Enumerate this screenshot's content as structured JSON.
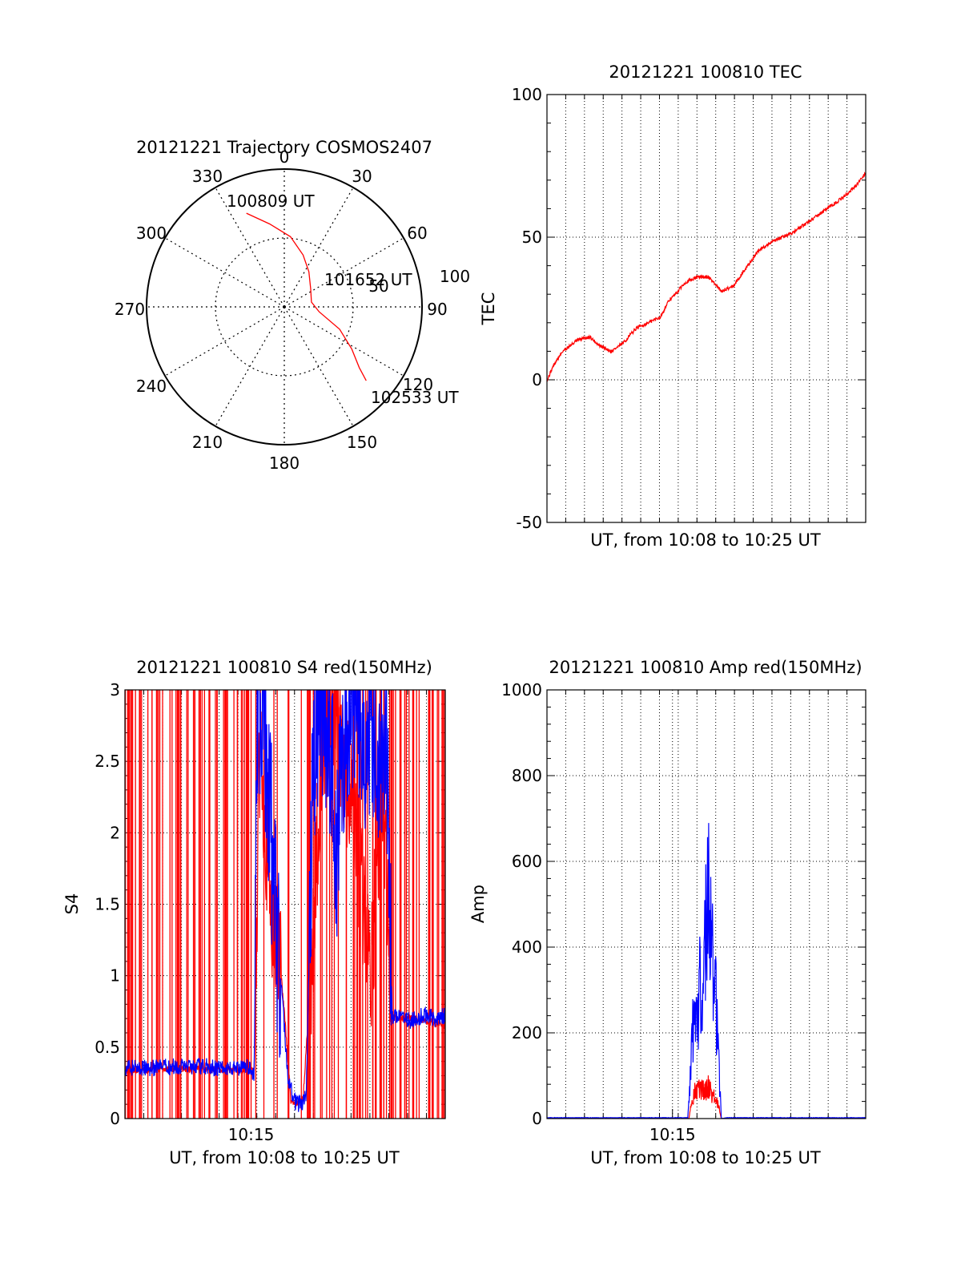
{
  "colors": {
    "red": "#ff0000",
    "blue": "#0000ff",
    "grid": "#000000"
  },
  "chart_data": [
    {
      "id": "trajectory",
      "type": "scatter",
      "subtype": "polar",
      "title": "20121221 Trajectory COSMOS2407",
      "azimuth_labels": [
        "0",
        "30",
        "60",
        "90",
        "120",
        "150",
        "180",
        "210",
        "240",
        "270",
        "300",
        "330"
      ],
      "radius_labels": [
        "50",
        "100"
      ],
      "annotations": [
        "100809 UT",
        "101652 UT",
        "102533 UT"
      ],
      "series": [
        {
          "color": "#ff0000",
          "points_az_el": [
            [
              338,
              24
            ],
            [
              350,
              35
            ],
            [
              5,
              44
            ],
            [
              20,
              54
            ],
            [
              35,
              62
            ],
            [
              55,
              69
            ],
            [
              80,
              72
            ],
            [
              98,
              67
            ],
            [
              112,
              51
            ],
            [
              122,
              38
            ],
            [
              129,
              27
            ],
            [
              132,
              18
            ]
          ]
        }
      ]
    },
    {
      "id": "tec",
      "type": "line",
      "title": "20121221 100810 TEC",
      "xlabel": "UT, from 10:08 to 10:25 UT",
      "ylabel": "TEC",
      "xlim": [
        10.1358,
        10.4258
      ],
      "ylim": [
        -50,
        100
      ],
      "yticks": [
        "-50",
        "0",
        "50",
        "100"
      ],
      "grid": true,
      "series": [
        {
          "color": "#ff0000",
          "x": [
            10.1361,
            10.1417,
            10.15,
            10.1639,
            10.175,
            10.1833,
            10.1944,
            10.2056,
            10.2167,
            10.2278,
            10.2389,
            10.2444,
            10.2472,
            10.2528,
            10.2611,
            10.2722,
            10.2833,
            10.2944,
            10.3056,
            10.3167,
            10.3278,
            10.3389,
            10.35,
            10.3611,
            10.3722,
            10.3833,
            10.3944,
            10.4056,
            10.4167,
            10.425
          ],
          "y": [
            0,
            5,
            10,
            14,
            15,
            12,
            10,
            13,
            18,
            20,
            22,
            26,
            28,
            30,
            34,
            36,
            36,
            31,
            33,
            39,
            45,
            48,
            50,
            52,
            55,
            58,
            61,
            64,
            68,
            72
          ]
        }
      ]
    },
    {
      "id": "s4",
      "type": "line",
      "title": "20121221 100810 S4 red(150MHz)",
      "xlabel": "UT, from 10:08 to 10:25 UT",
      "ylabel": "S4",
      "xtick_label": "10:15",
      "xtick_value": 10.25,
      "xlim": [
        10.1358,
        10.4258
      ],
      "ylim": [
        0,
        3
      ],
      "yticks": [
        "0",
        "0.5",
        "1",
        "1.5",
        "2",
        "2.5",
        "3"
      ],
      "grid": true,
      "series": [
        {
          "color": "#ff0000",
          "x": [
            10.1361,
            10.175,
            10.2528,
            10.2583,
            10.2639,
            10.2694,
            10.275,
            10.2806,
            10.2861,
            10.2917,
            10.2972,
            10.3056,
            10.3139,
            10.3222,
            10.3333,
            10.3417,
            10.35,
            10.3583,
            10.3639,
            10.3694,
            10.3778,
            10.4,
            10.425
          ],
          "y": [
            0.33,
            0.35,
            0.34,
            2.8,
            1.9,
            1.4,
            1.2,
            0.7,
            0.12,
            0.1,
            0.15,
            1.2,
            2.6,
            2.9,
            2.5,
            2.1,
            1.6,
            1.1,
            1.7,
            2.4,
            0.7,
            0.7,
            0.65
          ],
          "note": "dense vertical spikes 0–3 across interval"
        },
        {
          "color": "#0000ff",
          "x": [
            10.1361,
            10.15,
            10.175,
            10.2,
            10.225,
            10.25,
            10.2528,
            10.2556,
            10.2611,
            10.2667,
            10.2722,
            10.2778,
            10.2833,
            10.2889,
            10.2944,
            10.3,
            10.3056,
            10.3111,
            10.3194,
            10.3278,
            10.3361,
            10.3444,
            10.35,
            10.3556,
            10.3611,
            10.3667,
            10.3722,
            10.3778,
            10.3861,
            10.3944,
            10.4056,
            10.4167,
            10.425
          ],
          "y": [
            0.36,
            0.35,
            0.36,
            0.37,
            0.35,
            0.36,
            0.3,
            2.9,
            2.8,
            2.2,
            1.4,
            0.9,
            0.3,
            0.12,
            0.1,
            0.15,
            2.3,
            2.9,
            2.8,
            1.9,
            2.7,
            2.9,
            2.8,
            2.6,
            2.8,
            2.5,
            2.9,
            0.7,
            0.72,
            0.68,
            0.73,
            0.7,
            0.72
          ]
        }
      ]
    },
    {
      "id": "amp",
      "type": "line",
      "title": "20121221 100810 Amp red(150MHz)",
      "xlabel": "UT, from 10:08 to 10:25 UT",
      "ylabel": "Amp",
      "xtick_label": "10:15",
      "xtick_value": 10.25,
      "xlim": [
        10.1358,
        10.4258
      ],
      "ylim": [
        0,
        1000
      ],
      "yticks": [
        "0",
        "200",
        "400",
        "600",
        "800",
        "1000"
      ],
      "grid": true,
      "series": [
        {
          "color": "#ff0000",
          "x": [
            10.1361,
            10.265,
            10.2667,
            10.27,
            10.275,
            10.28,
            10.2833,
            10.2867,
            10.2917,
            10.2944,
            10.425
          ],
          "y": [
            0,
            0,
            30,
            60,
            70,
            65,
            75,
            55,
            30,
            0,
            0
          ]
        },
        {
          "color": "#0000ff",
          "x": [
            10.1361,
            10.2,
            10.2639,
            10.2667,
            10.2694,
            10.2722,
            10.275,
            10.2778,
            10.2806,
            10.2833,
            10.2861,
            10.2889,
            10.2917,
            10.2944,
            10.3,
            10.425
          ],
          "y": [
            2,
            2,
            2,
            120,
            250,
            200,
            330,
            280,
            480,
            585,
            380,
            300,
            150,
            0,
            2,
            2
          ]
        }
      ]
    }
  ]
}
